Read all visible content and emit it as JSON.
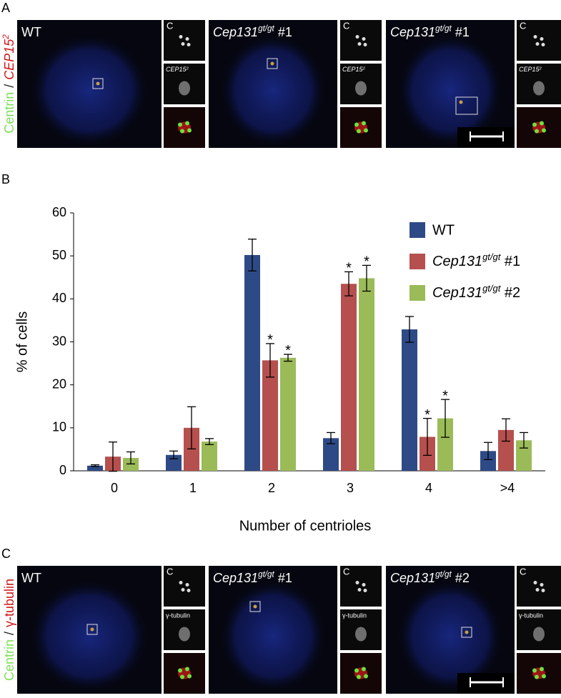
{
  "panel_a": {
    "letter": "A",
    "stain_label": [
      "Centrin",
      "/",
      "CEP152"
    ],
    "images": [
      {
        "label": "WT",
        "inset_top": "C",
        "inset_middle": "CEP152"
      },
      {
        "label": "Cep131gt/gt #1",
        "inset_top": "C",
        "inset_middle": "CEP152"
      },
      {
        "label": "Cep131gt/gt #1",
        "inset_top": "C",
        "inset_middle": "CEP152"
      }
    ]
  },
  "panel_b": {
    "letter": "B"
  },
  "chart_data": {
    "type": "bar",
    "y_label": "% of cells",
    "x_label": "Number of centrioles",
    "categories": [
      "0",
      "1",
      "2",
      "3",
      "4",
      ">4"
    ],
    "series": [
      {
        "name": "WT",
        "color": "#2e4a86",
        "values": [
          1.2,
          3.7,
          50.2,
          7.6,
          32.9,
          4.6
        ],
        "errors": [
          0.2,
          0.9,
          3.7,
          1.3,
          3.0,
          2.0
        ],
        "significant": [
          false,
          false,
          false,
          false,
          false,
          false
        ]
      },
      {
        "name": "Cep131gt/gt #1",
        "color": "#b5504e",
        "values": [
          3.3,
          10.0,
          25.7,
          43.5,
          7.9,
          9.5
        ],
        "errors": [
          3.4,
          4.9,
          3.9,
          2.8,
          4.3,
          2.6
        ],
        "significant": [
          false,
          false,
          true,
          true,
          true,
          false
        ]
      },
      {
        "name": "Cep131gt/gt #2",
        "color": "#9bbb59",
        "values": [
          3.0,
          6.8,
          26.3,
          44.8,
          12.2,
          7.1
        ],
        "errors": [
          1.4,
          0.7,
          0.8,
          3.0,
          4.4,
          1.8
        ],
        "significant": [
          false,
          false,
          true,
          true,
          true,
          false
        ]
      }
    ],
    "significance_marker": "*",
    "ylim": [
      0,
      60
    ],
    "yticks": [
      0,
      10,
      20,
      30,
      40,
      50,
      60
    ],
    "grid": false,
    "legend": "upper right"
  },
  "panel_c": {
    "letter": "C",
    "stain_label": [
      "Centrin",
      "/",
      "γ-tubulin"
    ],
    "images": [
      {
        "label": "WT",
        "inset_top": "C",
        "inset_middle": "γ-tubulin"
      },
      {
        "label": "Cep131gt/gt #1",
        "inset_top": "C",
        "inset_middle": "γ-tubulin"
      },
      {
        "label": "Cep131gt/gt #2",
        "inset_top": "C",
        "inset_middle": "γ-tubulin"
      }
    ]
  }
}
